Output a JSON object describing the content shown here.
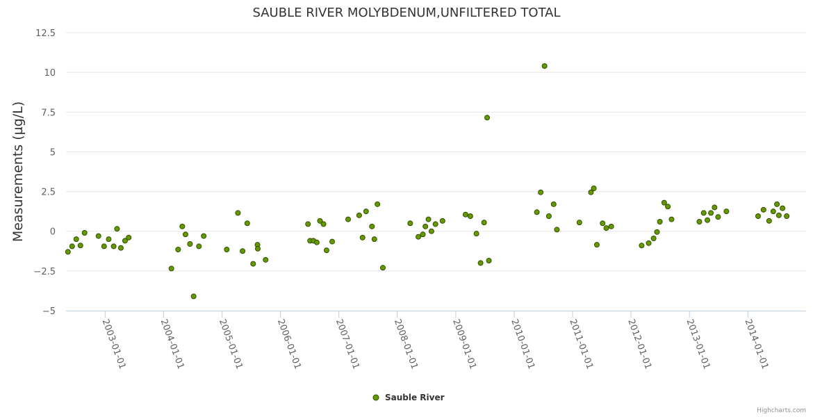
{
  "chart_data": {
    "type": "scatter",
    "title": "SAUBLE RIVER MOLYBDENUM,UNFILTERED TOTAL",
    "ylabel": "Measurements (µg/L)",
    "xlabel": "",
    "ylim": [
      -5,
      12.5
    ],
    "yticks": [
      "12.5",
      "10",
      "7.5",
      "5",
      "2.5",
      "0",
      "−2.5",
      "−5"
    ],
    "ytick_values": [
      12.5,
      10,
      7.5,
      5,
      2.5,
      0,
      -2.5,
      -5
    ],
    "xlim": [
      "2002-05-01",
      "2014-12-31"
    ],
    "xticks": [
      "2003-01-01",
      "2004-01-01",
      "2005-01-01",
      "2006-01-01",
      "2007-01-01",
      "2008-01-01",
      "2009-01-01",
      "2010-01-01",
      "2011-01-01",
      "2012-01-01",
      "2013-01-01",
      "2014-01-01"
    ],
    "grid": true,
    "legend_position": "bottom-center",
    "series": [
      {
        "name": "Sauble River",
        "color": "#669900",
        "stroke": "#2f4f00",
        "points": [
          [
            "2002-05-13",
            -1.3
          ],
          [
            "2002-06-08",
            -0.95
          ],
          [
            "2002-07-04",
            -0.5
          ],
          [
            "2002-07-30",
            -0.9
          ],
          [
            "2002-08-25",
            -0.1
          ],
          [
            "2002-11-20",
            -0.3
          ],
          [
            "2002-12-25",
            -0.95
          ],
          [
            "2003-01-23",
            -0.5
          ],
          [
            "2003-02-23",
            -0.95
          ],
          [
            "2003-03-16",
            0.15
          ],
          [
            "2003-04-09",
            -1.05
          ],
          [
            "2003-05-05",
            -0.6
          ],
          [
            "2003-05-28",
            -0.4
          ],
          [
            "2004-02-19",
            -2.35
          ],
          [
            "2004-04-01",
            -1.15
          ],
          [
            "2004-04-27",
            0.3
          ],
          [
            "2004-05-17",
            -0.2
          ],
          [
            "2004-06-14",
            -0.8
          ],
          [
            "2004-07-07",
            -4.1
          ],
          [
            "2004-08-09",
            -0.95
          ],
          [
            "2004-09-08",
            -0.3
          ],
          [
            "2005-01-30",
            -1.15
          ],
          [
            "2005-04-10",
            1.15
          ],
          [
            "2005-05-09",
            -1.25
          ],
          [
            "2005-06-07",
            0.5
          ],
          [
            "2005-07-14",
            -2.05
          ],
          [
            "2005-08-10",
            -0.85
          ],
          [
            "2005-08-12",
            -1.1
          ],
          [
            "2005-09-30",
            -1.8
          ],
          [
            "2006-06-22",
            0.45
          ],
          [
            "2006-07-05",
            -0.6
          ],
          [
            "2006-07-26",
            -0.6
          ],
          [
            "2006-08-16",
            -0.7
          ],
          [
            "2006-09-05",
            0.65
          ],
          [
            "2006-09-27",
            0.45
          ],
          [
            "2006-10-16",
            -1.2
          ],
          [
            "2006-11-20",
            -0.65
          ],
          [
            "2007-02-28",
            0.75
          ],
          [
            "2007-05-08",
            1.0
          ],
          [
            "2007-05-29",
            -0.4
          ],
          [
            "2007-06-20",
            1.25
          ],
          [
            "2007-07-27",
            0.3
          ],
          [
            "2007-08-11",
            -0.5
          ],
          [
            "2007-08-30",
            1.7
          ],
          [
            "2007-10-03",
            -2.3
          ],
          [
            "2008-03-22",
            0.5
          ],
          [
            "2008-05-12",
            -0.35
          ],
          [
            "2008-06-09",
            -0.2
          ],
          [
            "2008-06-25",
            0.3
          ],
          [
            "2008-07-14",
            0.75
          ],
          [
            "2008-08-02",
            0.0
          ],
          [
            "2008-08-27",
            0.45
          ],
          [
            "2008-10-10",
            0.65
          ],
          [
            "2009-03-03",
            1.05
          ],
          [
            "2009-04-02",
            0.95
          ],
          [
            "2009-05-10",
            -0.15
          ],
          [
            "2009-06-05",
            -2.0
          ],
          [
            "2009-06-27",
            0.55
          ],
          [
            "2009-07-16",
            7.15
          ],
          [
            "2009-07-27",
            -1.85
          ],
          [
            "2010-05-23",
            1.2
          ],
          [
            "2010-06-16",
            2.45
          ],
          [
            "2010-07-10",
            10.4
          ],
          [
            "2010-08-06",
            0.95
          ],
          [
            "2010-09-05",
            1.7
          ],
          [
            "2010-09-25",
            0.1
          ],
          [
            "2011-02-13",
            0.55
          ],
          [
            "2011-04-26",
            2.45
          ],
          [
            "2011-05-14",
            2.7
          ],
          [
            "2011-06-02",
            -0.85
          ],
          [
            "2011-07-08",
            0.5
          ],
          [
            "2011-07-31",
            0.2
          ],
          [
            "2011-08-31",
            0.3
          ],
          [
            "2012-03-08",
            -0.9
          ],
          [
            "2012-04-21",
            -0.75
          ],
          [
            "2012-05-22",
            -0.45
          ],
          [
            "2012-06-12",
            -0.05
          ],
          [
            "2012-06-30",
            0.6
          ],
          [
            "2012-07-27",
            1.8
          ],
          [
            "2012-08-19",
            1.55
          ],
          [
            "2012-09-11",
            0.75
          ],
          [
            "2013-03-04",
            0.6
          ],
          [
            "2013-03-31",
            1.15
          ],
          [
            "2013-04-23",
            0.7
          ],
          [
            "2013-05-15",
            1.15
          ],
          [
            "2013-06-07",
            1.5
          ],
          [
            "2013-06-29",
            0.9
          ],
          [
            "2013-08-20",
            1.25
          ],
          [
            "2014-03-06",
            0.95
          ],
          [
            "2014-04-09",
            1.35
          ],
          [
            "2014-05-14",
            0.65
          ],
          [
            "2014-06-09",
            1.25
          ],
          [
            "2014-07-02",
            1.7
          ],
          [
            "2014-07-14",
            1.0
          ],
          [
            "2014-08-06",
            1.45
          ],
          [
            "2014-09-01",
            0.95
          ]
        ]
      }
    ]
  },
  "credits": "Highcharts.com"
}
